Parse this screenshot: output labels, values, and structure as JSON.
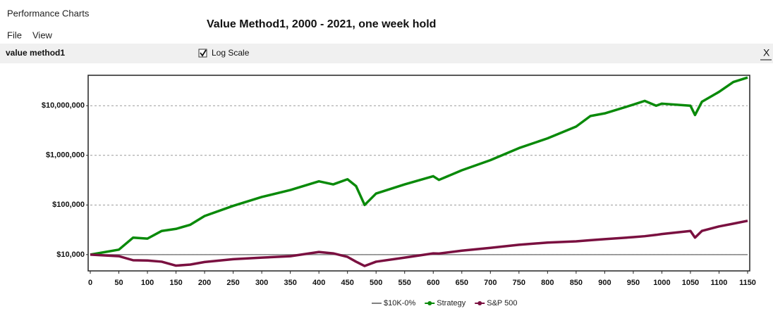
{
  "window": {
    "title": "Performance Charts",
    "menu": [
      "File",
      "View"
    ]
  },
  "toolbar": {
    "name": "value method1",
    "checkbox": "Log Scale",
    "checked": true,
    "close": "X"
  },
  "chart_data": {
    "type": "line",
    "title": "Value Method1, 2000 - 2021, one week hold",
    "log_scale": true,
    "grid": true,
    "legend": "bottom",
    "x": [
      0,
      50,
      75,
      100,
      125,
      150,
      175,
      200,
      250,
      300,
      350,
      400,
      425,
      450,
      465,
      480,
      500,
      550,
      600,
      610,
      650,
      700,
      750,
      800,
      850,
      875,
      900,
      950,
      970,
      990,
      1000,
      1050,
      1058,
      1070,
      1100,
      1125,
      1150
    ],
    "xlim": [
      0,
      1150
    ],
    "xticks": [
      0,
      50,
      100,
      150,
      200,
      250,
      300,
      350,
      400,
      450,
      500,
      550,
      600,
      650,
      700,
      750,
      800,
      850,
      900,
      950,
      1000,
      1050,
      1100,
      1150
    ],
    "ylim": [
      4700,
      41000000
    ],
    "yticks": [
      {
        "value": 10000,
        "label": "$10,000"
      },
      {
        "value": 100000,
        "label": "$100,000"
      },
      {
        "value": 1000000,
        "label": "$1,000,000"
      },
      {
        "value": 10000000,
        "label": "$10,000,000"
      }
    ],
    "series": [
      {
        "name": "$10K-0%",
        "color": "#808080",
        "values": [
          10000,
          10000,
          10000,
          10000,
          10000,
          10000,
          10000,
          10000,
          10000,
          10000,
          10000,
          10000,
          10000,
          10000,
          10000,
          10000,
          10000,
          10000,
          10000,
          10000,
          10000,
          10000,
          10000,
          10000,
          10000,
          10000,
          10000,
          10000,
          10000,
          10000,
          10000,
          10000,
          10000,
          10000,
          10000,
          10000,
          10000
        ]
      },
      {
        "name": "Strategy",
        "color": "#0a8a0a",
        "values": [
          10000,
          12600,
          22000,
          21000,
          30000,
          33000,
          40000,
          60000,
          96000,
          145000,
          200000,
          300000,
          260000,
          330000,
          240000,
          100000,
          170000,
          260000,
          380000,
          320000,
          500000,
          800000,
          1400000,
          2200000,
          3800000,
          6200000,
          7000000,
          10500000,
          12500000,
          10000000,
          11000000,
          10000000,
          6500000,
          12000000,
          19000000,
          30000000,
          37000000
        ]
      },
      {
        "name": "S&P 500",
        "color": "#7a1040",
        "values": [
          10000,
          9300,
          7700,
          7600,
          7200,
          6000,
          6300,
          7100,
          8100,
          8700,
          9300,
          11300,
          10600,
          9000,
          7200,
          5900,
          7200,
          8700,
          10600,
          10500,
          12000,
          13700,
          15800,
          17500,
          18500,
          19500,
          20500,
          22500,
          23500,
          25000,
          26000,
          30000,
          22000,
          30000,
          37000,
          42000,
          48000
        ]
      }
    ]
  }
}
